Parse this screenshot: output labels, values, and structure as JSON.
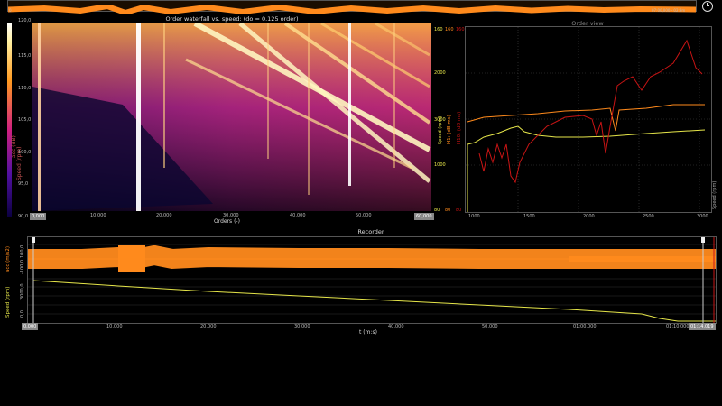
{
  "overview": {
    "left_time": "0",
    "right_time": "07:00,000 - 02:9m",
    "clock_icon": "clock-icon"
  },
  "waterfall": {
    "title": "Order waterfall vs. speed: (do = 0.125 order)",
    "y_label": "Speed (rpm)",
    "colorbar_label": "acc (dB)",
    "colorbar_top": "120,0",
    "colorbar_bottom": "90,0",
    "y_ticks": [
      "115,0",
      "110,0",
      "105,0",
      "100,0",
      "95,0"
    ],
    "x_ticks": [
      "0,000",
      "10,000",
      "20,000",
      "30,000",
      "40,000",
      "50,000",
      "60,000"
    ],
    "x_label": "Orders (-)",
    "x_box_left": "0,000",
    "x_box_right": "60,000"
  },
  "order_view": {
    "title": "Order view",
    "speed_axis_label": "Speed (rpm)",
    "speed_ticks": [
      "3000",
      "2000",
      "1000"
    ],
    "h1_label": "H1: (dB ms)",
    "h10_label": "H10: (dB ms)",
    "top_values": [
      "160",
      "160",
      "160"
    ],
    "bottom_values": [
      "80",
      "80",
      "80"
    ],
    "right_label": "Speed (rpm)",
    "x_ticks": [
      "1000",
      "1500",
      "2000",
      "2500",
      "3000"
    ]
  },
  "recorder": {
    "title": "Recorder",
    "acc_label": "acc (m/s2)",
    "speed_label": "Speed (rpm)",
    "acc_top": "100,0",
    "acc_bottom": "-100,0",
    "speed_top": "3000,0",
    "speed_bottom": "0,0",
    "x_ticks": [
      "0,000",
      "10,000",
      "20,000",
      "30,000",
      "40,000",
      "50,000",
      "01:00,000",
      "01:10,000"
    ],
    "x_label": "t (m:s)",
    "x_box_left": "0,000",
    "x_box_right": "01:14,019"
  },
  "colors": {
    "orange": "#ff8a1c",
    "yellow": "#e6e64a",
    "red": "#c81414",
    "dark_red": "#a01010"
  }
}
